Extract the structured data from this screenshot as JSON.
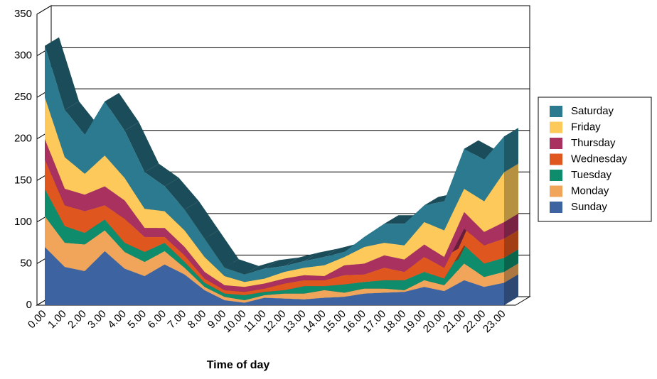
{
  "chart_data": {
    "type": "stacked_area_3d",
    "x_label": "Time of day",
    "categories": [
      "0.00",
      "1.00",
      "2.00",
      "3.00",
      "4.00",
      "5.00",
      "6.00",
      "7.00",
      "8.00",
      "9.00",
      "10.00",
      "11.00",
      "12.00",
      "13.00",
      "14.00",
      "15.00",
      "16.00",
      "17.00",
      "18.00",
      "19.00",
      "20.00",
      "21.00",
      "22.00",
      "23.00"
    ],
    "ylim": [
      0,
      350
    ],
    "yticks": [
      0,
      50,
      100,
      150,
      200,
      250,
      300,
      350
    ],
    "grid": true,
    "legend": "right",
    "series": [
      {
        "name": "Sunday",
        "color": "#3d64a0",
        "values": [
          70,
          46,
          41,
          65,
          44,
          35,
          49,
          37,
          18,
          6,
          3,
          9,
          8,
          7,
          9,
          10,
          14,
          15,
          16,
          22,
          17,
          30,
          22,
          27
        ]
      },
      {
        "name": "Monday",
        "color": "#f0a55a",
        "values": [
          37,
          29,
          32,
          25,
          20,
          17,
          16,
          8,
          4,
          4,
          3,
          3,
          6,
          7,
          9,
          5,
          6,
          5,
          2,
          8,
          7,
          20,
          12,
          13
        ]
      },
      {
        "name": "Tuesday",
        "color": "#0e8c6b",
        "values": [
          33,
          20,
          14,
          13,
          11,
          12,
          10,
          7,
          5,
          4,
          6,
          4,
          4,
          9,
          5,
          10,
          8,
          10,
          12,
          10,
          8,
          22,
          16,
          17
        ]
      },
      {
        "name": "Wednesday",
        "color": "#e0561f",
        "values": [
          35,
          25,
          26,
          17,
          29,
          18,
          7,
          8,
          5,
          4,
          4,
          4,
          8,
          7,
          7,
          11,
          9,
          15,
          10,
          18,
          13,
          20,
          22,
          23
        ]
      },
      {
        "name": "Thursday",
        "color": "#a8315f",
        "values": [
          25,
          20,
          20,
          23,
          22,
          11,
          11,
          10,
          8,
          6,
          6,
          6,
          6,
          6,
          5,
          12,
          13,
          15,
          15,
          15,
          13,
          20,
          16,
          20
        ]
      },
      {
        "name": "Friday",
        "color": "#fcc95a",
        "values": [
          50,
          38,
          25,
          37,
          27,
          23,
          20,
          20,
          18,
          11,
          6,
          6,
          8,
          9,
          13,
          10,
          20,
          15,
          17,
          27,
          32,
          28,
          37,
          60
        ]
      },
      {
        "name": "Saturday",
        "color": "#2b7a8f",
        "values": [
          62,
          57,
          47,
          65,
          57,
          44,
          30,
          25,
          22,
          10,
          9,
          12,
          7,
          8,
          10,
          6,
          12,
          23,
          26,
          20,
          35,
          48,
          50,
          43
        ]
      }
    ]
  }
}
